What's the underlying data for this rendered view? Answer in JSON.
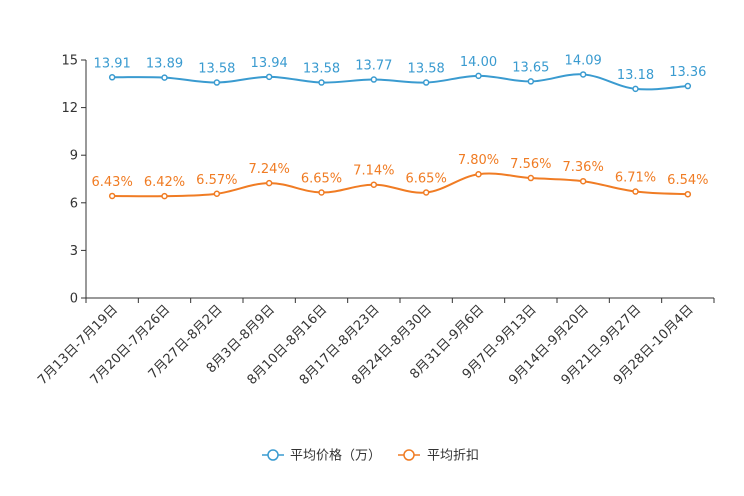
{
  "chart_data": {
    "type": "line",
    "categories": [
      "7月13日-7月19日",
      "7月20日-7月26日",
      "7月27日-8月2日",
      "8月3日-8月9日",
      "8月10日-8月16日",
      "8月17日-8月23日",
      "8月24日-8月30日",
      "8月31日-9月6日",
      "9月7日-9月13日",
      "9月14日-9月20日",
      "9月21日-9月27日",
      "9月28日-10月4日"
    ],
    "series": [
      {
        "name": "平均价格（万）",
        "color": "#3a9bd0",
        "values": [
          13.91,
          13.89,
          13.58,
          13.94,
          13.58,
          13.77,
          13.58,
          14.0,
          13.65,
          14.09,
          13.18,
          13.36
        ],
        "labels": [
          "13.91",
          "13.89",
          "13.58",
          "13.94",
          "13.58",
          "13.77",
          "13.58",
          "14.00",
          "13.65",
          "14.09",
          "13.18",
          "13.36"
        ]
      },
      {
        "name": "平均折扣",
        "color": "#f07c24",
        "values": [
          6.43,
          6.42,
          6.57,
          7.24,
          6.65,
          7.14,
          6.65,
          7.8,
          7.56,
          7.36,
          6.71,
          6.54
        ],
        "labels": [
          "6.43%",
          "6.42%",
          "6.57%",
          "7.24%",
          "6.65%",
          "7.14%",
          "6.65%",
          "7.80%",
          "7.56%",
          "7.36%",
          "6.71%",
          "6.54%"
        ]
      }
    ],
    "yticks": [
      "0",
      "3",
      "6",
      "9",
      "12",
      "15"
    ],
    "ylim": [
      0,
      15
    ],
    "legend_position": "bottom-center"
  }
}
